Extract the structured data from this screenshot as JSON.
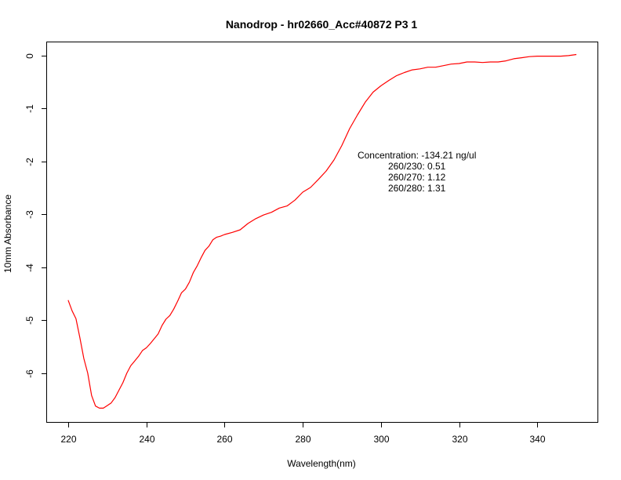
{
  "chart_data": {
    "type": "line",
    "title": "Nanodrop - hr02660_Acc#40872 P3 1",
    "xlabel": "Wavelength(nm)",
    "ylabel": "10mm Absorbance",
    "xlim": [
      214.6,
      355.4
    ],
    "ylim": [
      -6.92,
      0.25
    ],
    "xticks": [
      220,
      240,
      260,
      280,
      300,
      320,
      340
    ],
    "yticks": [
      0,
      -1,
      -2,
      -3,
      -4,
      -5,
      -6
    ],
    "grid": false,
    "legend": "none",
    "annotations": [
      "Concentration: -134.21 ng/ul",
      "260/230: 0.51",
      "260/270: 1.12",
      "260/280: 1.31"
    ],
    "series": [
      {
        "color": "#ff0000",
        "x": [
          220,
          221,
          222,
          223,
          224,
          225,
          226,
          227,
          228,
          229,
          230,
          231,
          232,
          233,
          234,
          235,
          236,
          237,
          238,
          239,
          240,
          241,
          242,
          243,
          244,
          245,
          246,
          247,
          248,
          249,
          250,
          251,
          252,
          253,
          254,
          255,
          256,
          257,
          258,
          259,
          260,
          262,
          264,
          266,
          268,
          270,
          272,
          274,
          276,
          278,
          280,
          282,
          284,
          286,
          288,
          290,
          292,
          294,
          296,
          298,
          300,
          302,
          304,
          306,
          308,
          310,
          312,
          314,
          316,
          318,
          320,
          322,
          324,
          326,
          328,
          330,
          332,
          334,
          336,
          338,
          340,
          342,
          344,
          346,
          348,
          350
        ],
        "y": [
          -4.62,
          -4.82,
          -4.97,
          -5.33,
          -5.72,
          -6.0,
          -6.42,
          -6.62,
          -6.66,
          -6.66,
          -6.61,
          -6.56,
          -6.46,
          -6.32,
          -6.18,
          -6.0,
          -5.86,
          -5.77,
          -5.68,
          -5.57,
          -5.52,
          -5.44,
          -5.35,
          -5.26,
          -5.1,
          -4.98,
          -4.91,
          -4.79,
          -4.64,
          -4.48,
          -4.41,
          -4.28,
          -4.1,
          -3.97,
          -3.82,
          -3.68,
          -3.6,
          -3.48,
          -3.43,
          -3.41,
          -3.38,
          -3.34,
          -3.29,
          -3.17,
          -3.08,
          -3.01,
          -2.96,
          -2.88,
          -2.84,
          -2.73,
          -2.58,
          -2.49,
          -2.34,
          -2.18,
          -1.97,
          -1.7,
          -1.38,
          -1.12,
          -0.88,
          -0.69,
          -0.57,
          -0.47,
          -0.38,
          -0.32,
          -0.27,
          -0.25,
          -0.22,
          -0.22,
          -0.19,
          -0.16,
          -0.15,
          -0.12,
          -0.12,
          -0.13,
          -0.12,
          -0.12,
          -0.1,
          -0.06,
          -0.04,
          -0.02,
          -0.01,
          -0.01,
          -0.01,
          -0.01,
          0.0,
          0.02
        ]
      }
    ]
  }
}
